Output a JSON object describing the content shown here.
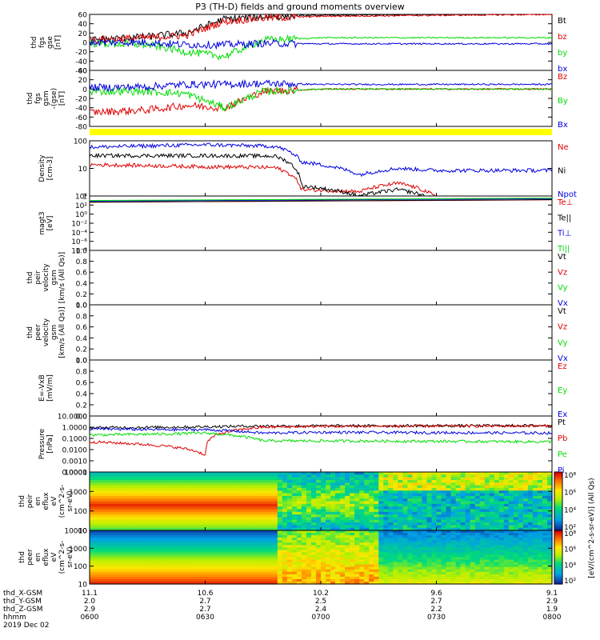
{
  "title": "P3 (TH-D) fields and ground moments overview",
  "colors": {
    "black": "#000000",
    "red": "#e00000",
    "green": "#00dd00",
    "blue": "#0000e0",
    "yellow": "#ffff00"
  },
  "panels": [
    {
      "id": "fgs-gse",
      "ylabel": [
        "thd",
        "fgs",
        "gse",
        "[nT]"
      ],
      "yticks": [
        "60",
        "40",
        "20",
        "0",
        "-20",
        "-40",
        "-60"
      ],
      "ylim": [
        -60,
        60
      ],
      "legend": [
        {
          "text": "Bt",
          "color": "black"
        },
        {
          "text": "bz",
          "color": "red"
        },
        {
          "text": "by",
          "color": "green"
        },
        {
          "text": "bx",
          "color": "blue"
        }
      ]
    },
    {
      "id": "fgs-gsm",
      "ylabel": [
        "thd",
        "fgs",
        "gsm",
        "-(gse)",
        "[nT]"
      ],
      "yticks": [
        "40",
        "20",
        "0",
        "-20",
        "-40",
        "-60",
        "-80"
      ],
      "ylim": [
        -80,
        40
      ],
      "legend": [
        {
          "text": "Bz",
          "color": "red"
        },
        {
          "text": "By",
          "color": "green"
        },
        {
          "text": "Bx",
          "color": "blue"
        }
      ]
    },
    {
      "id": "density",
      "ylabel": [
        "Density",
        "[cm-3]"
      ],
      "yticks": [
        "100",
        "10",
        "1"
      ],
      "log": true,
      "legend": [
        {
          "text": "Ne",
          "color": "red"
        },
        {
          "text": "Ni",
          "color": "black"
        },
        {
          "text": "Npot",
          "color": "blue"
        }
      ]
    },
    {
      "id": "temp",
      "ylabel": [
        "magt3",
        "[eV]"
      ],
      "yticks": [
        "10⁴",
        "10²",
        "10⁰",
        "10⁻²",
        "10⁻⁴",
        "10⁻⁶",
        "10⁻⁸"
      ],
      "log": true,
      "legend": [
        {
          "text": "Te⊥",
          "color": "red"
        },
        {
          "text": "Te||",
          "color": "black"
        },
        {
          "text": "Ti⊥",
          "color": "blue"
        },
        {
          "text": "Ti||",
          "color": "green"
        }
      ]
    },
    {
      "id": "peir-vel",
      "ylabel": [
        "thd",
        "peir",
        "velocity",
        "gsm",
        "[km/s (All Qs)]"
      ],
      "yticks": [
        "1.0",
        "0.8",
        "0.6",
        "0.4",
        "0.2",
        "0.0"
      ],
      "legend": [
        {
          "text": "Vt",
          "color": "black"
        },
        {
          "text": "Vz",
          "color": "red"
        },
        {
          "text": "Vy",
          "color": "green"
        },
        {
          "text": "Vx",
          "color": "blue"
        }
      ]
    },
    {
      "id": "peer-vel",
      "ylabel": [
        "thd",
        "peer",
        "velocity",
        "gsm",
        "[km/s (All Qs)]"
      ],
      "yticks": [
        "1.0",
        "0.8",
        "0.6",
        "0.4",
        "0.2",
        "0.0"
      ],
      "legend": [
        {
          "text": "Vt",
          "color": "black"
        },
        {
          "text": "Vz",
          "color": "red"
        },
        {
          "text": "Vy",
          "color": "green"
        },
        {
          "text": "Vx",
          "color": "blue"
        }
      ]
    },
    {
      "id": "efield",
      "ylabel": [
        "E=-VxB",
        "[mV/m]"
      ],
      "yticks": [
        "1.0",
        "0.8",
        "0.6",
        "0.4",
        "0.2",
        "0.0"
      ],
      "legend": [
        {
          "text": "Ez",
          "color": "red"
        },
        {
          "text": "Ey",
          "color": "green"
        },
        {
          "text": "Ex",
          "color": "blue"
        }
      ]
    },
    {
      "id": "pressure",
      "ylabel": [
        "Pressure",
        "[nPa]"
      ],
      "yticks": [
        "10.0000",
        "1.0000",
        "0.1000",
        "0.0100",
        "0.0010",
        "0.0001"
      ],
      "log": true,
      "legend": [
        {
          "text": "Pt",
          "color": "black"
        },
        {
          "text": "Pb",
          "color": "red"
        },
        {
          "text": "Pe",
          "color": "green"
        },
        {
          "text": "Pi",
          "color": "blue"
        }
      ]
    },
    {
      "id": "peir-spec",
      "ylabel": [
        "thd",
        "peir",
        "en",
        "eflux",
        "eV",
        "(cm^2-s-",
        "sr-eV)"
      ],
      "yticks": [
        "10000",
        "1000",
        "100",
        "10"
      ]
    },
    {
      "id": "peer-spec",
      "ylabel": [
        "thd",
        "peer",
        "en",
        "eflux",
        "eV",
        "(cm^2-s-",
        "sr-eV)"
      ],
      "yticks": [
        "10000",
        "1000",
        "100",
        "10"
      ]
    }
  ],
  "colorbar": {
    "label": "[eV/(cm^2-s-sr-eV)] (All Qs)",
    "upper_ticks": [
      "10⁸",
      "10⁶",
      "10⁴",
      "10²"
    ],
    "lower_ticks": [
      "10⁸",
      "10⁶",
      "10⁴",
      "10²"
    ]
  },
  "xaxis": {
    "rows": [
      {
        "label": "thd_X-GSM",
        "values": [
          "11.1",
          "10.6",
          "10.2",
          "9.6",
          "9.1"
        ]
      },
      {
        "label": "thd_Y-GSM",
        "values": [
          "2.0",
          "2.7",
          "2.5",
          "2.7",
          "2.9"
        ]
      },
      {
        "label": "thd_Z-GSM",
        "values": [
          "2.9",
          "2.7",
          "2.4",
          "2.2",
          "1.9"
        ]
      },
      {
        "label": "hhmm",
        "values": [
          "0600",
          "0630",
          "0700",
          "0730",
          "0800"
        ]
      }
    ],
    "date": "2019 Dec 02"
  },
  "chart_data": {
    "type": "line",
    "title": "P3 (TH-D) fields and ground moments overview",
    "time_range": [
      "0600",
      "0800"
    ],
    "panels": [
      {
        "name": "thd fgs gse [nT]",
        "ylim": [
          -60,
          60
        ],
        "x": [
          "0600",
          "0615",
          "0625",
          "0635",
          "0645",
          "0700",
          "0730",
          "0800"
        ],
        "series": [
          {
            "name": "Bt",
            "values": [
              5,
              12,
              20,
              50,
              55,
              58,
              60,
              62
            ]
          },
          {
            "name": "bz",
            "values": [
              5,
              10,
              15,
              45,
              52,
              56,
              58,
              60
            ]
          },
          {
            "name": "by",
            "values": [
              -2,
              -5,
              -20,
              -30,
              5,
              10,
              10,
              10
            ]
          },
          {
            "name": "bx",
            "values": [
              0,
              0,
              -5,
              -5,
              -2,
              -3,
              -3,
              -3
            ]
          }
        ]
      },
      {
        "name": "thd fgs gsm [nT]",
        "ylim": [
          -80,
          40
        ],
        "x": [
          "0600",
          "0615",
          "0625",
          "0635",
          "0645",
          "0700",
          "0730",
          "0800"
        ],
        "series": [
          {
            "name": "Bz",
            "values": [
              -50,
              -45,
              -35,
              -40,
              -5,
              0,
              0,
              0
            ]
          },
          {
            "name": "By",
            "values": [
              -5,
              -5,
              -10,
              -40,
              -5,
              0,
              0,
              0
            ]
          },
          {
            "name": "Bx",
            "values": [
              3,
              5,
              10,
              10,
              12,
              10,
              10,
              10
            ]
          }
        ]
      },
      {
        "name": "Density [cm-3]",
        "log": true,
        "x": [
          "0600",
          "0630",
          "0648",
          "0655",
          "0710",
          "0720",
          "0730",
          "0800"
        ],
        "series": [
          {
            "name": "Ne",
            "values": [
              15,
              12,
              11,
              1.0,
              0.8,
              2,
              0.4,
              0.4
            ]
          },
          {
            "name": "Ni",
            "values": [
              40,
              40,
              38,
              1.5,
              0.5,
              1,
              0.3,
              0.3
            ]
          },
          {
            "name": "Npot",
            "values": [
              100,
              130,
              110,
              20,
              5,
              10,
              8,
              8
            ]
          }
        ]
      },
      {
        "name": "Pressure [nPa]",
        "log": true,
        "x": [
          "0600",
          "0620",
          "0630",
          "0645",
          "0700",
          "0800"
        ],
        "series": [
          {
            "name": "Pt",
            "values": [
              0.9,
              1.0,
              1.1,
              1.3,
              1.3,
              1.4
            ]
          },
          {
            "name": "Pb",
            "values": [
              0.05,
              0.02,
              0.003,
              1.0,
              1.2,
              1.3
            ]
          },
          {
            "name": "Pe",
            "values": [
              0.2,
              0.25,
              0.3,
              0.06,
              0.06,
              0.05
            ]
          },
          {
            "name": "Pi",
            "values": [
              0.7,
              0.6,
              0.6,
              0.3,
              0.35,
              0.3
            ]
          }
        ]
      }
    ]
  }
}
